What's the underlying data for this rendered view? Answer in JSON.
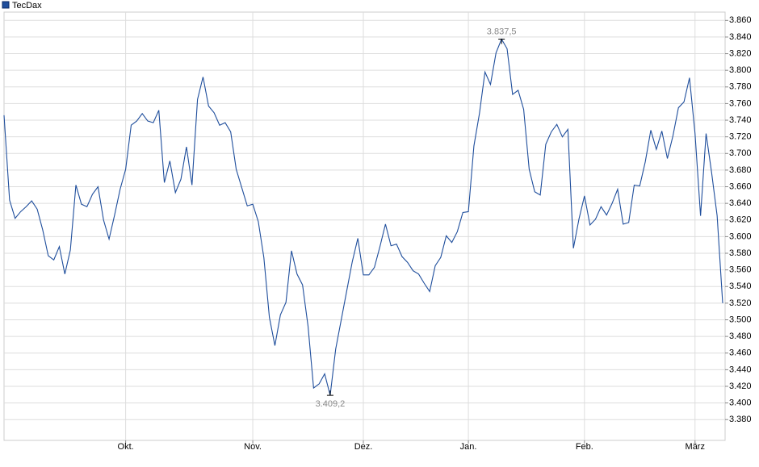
{
  "chart_data": {
    "type": "line",
    "legend": "top-left",
    "grid": true,
    "categories": [
      null,
      null,
      null,
      null,
      null,
      null,
      null,
      null,
      null,
      null,
      null,
      null,
      null,
      null,
      null,
      null,
      null,
      null,
      null,
      null,
      null,
      null,
      "Okt.",
      null,
      null,
      null,
      null,
      null,
      null,
      null,
      null,
      null,
      null,
      null,
      null,
      null,
      null,
      null,
      null,
      null,
      null,
      null,
      null,
      null,
      null,
      "Nov.",
      null,
      null,
      null,
      null,
      null,
      null,
      null,
      null,
      null,
      null,
      null,
      null,
      null,
      null,
      null,
      null,
      null,
      null,
      null,
      "Dez.",
      null,
      null,
      null,
      null,
      null,
      null,
      null,
      null,
      null,
      null,
      null,
      null,
      null,
      null,
      null,
      null,
      null,
      null,
      "Jan.",
      null,
      null,
      null,
      null,
      null,
      null,
      null,
      null,
      null,
      null,
      null,
      null,
      null,
      null,
      null,
      null,
      null,
      null,
      null,
      null,
      "Feb.",
      null,
      null,
      null,
      null,
      null,
      null,
      null,
      null,
      null,
      null,
      null,
      null,
      null,
      null,
      null,
      null,
      null,
      null,
      null,
      "März",
      null,
      null,
      null,
      null,
      null
    ],
    "series": [
      {
        "name": "TecDax",
        "color": "#1f4e9c",
        "values": [
          3746,
          3644,
          3622,
          3630,
          3636,
          3643,
          3633,
          3608,
          3577,
          3572,
          3588,
          3555,
          3584,
          3662,
          3639,
          3636,
          3651,
          3660,
          3620,
          3597,
          3626,
          3657,
          3681,
          3734,
          3739,
          3748,
          3739,
          3737,
          3752,
          3665,
          3691,
          3653,
          3669,
          3708,
          3662,
          3765,
          3792,
          3757,
          3749,
          3734,
          3737,
          3726,
          3681,
          3659,
          3637,
          3639,
          3618,
          3575,
          3503,
          3469,
          3506,
          3521,
          3583,
          3555,
          3542,
          3492,
          3418,
          3423,
          3435,
          3409.2,
          3465,
          3500,
          3535,
          3570,
          3598,
          3554,
          3554,
          3563,
          3588,
          3615,
          3589,
          3591,
          3576,
          3569,
          3559,
          3555,
          3544,
          3534,
          3565,
          3575,
          3601,
          3593,
          3606,
          3629,
          3630,
          3709,
          3748,
          3798,
          3783,
          3821,
          3837.5,
          3826,
          3771,
          3776,
          3753,
          3681,
          3654,
          3650,
          3711,
          3726,
          3735,
          3720,
          3729,
          3586,
          3621,
          3649,
          3614,
          3621,
          3636,
          3626,
          3640,
          3657,
          3615,
          3617,
          3662,
          3661,
          3690,
          3728,
          3705,
          3727,
          3694,
          3721,
          3755,
          3762,
          3791,
          3724,
          3625,
          3724,
          3677,
          3625,
          3520
        ],
        "value_labels": [
          null,
          null,
          null,
          null,
          null,
          null,
          null,
          null,
          null,
          null,
          null,
          null,
          null,
          null,
          null,
          null,
          null,
          null,
          null,
          null,
          null,
          null,
          null,
          null,
          null,
          null,
          null,
          null,
          null,
          null,
          null,
          null,
          null,
          null,
          null,
          null,
          null,
          null,
          null,
          null,
          null,
          null,
          null,
          null,
          null,
          null,
          null,
          null,
          null,
          null,
          null,
          null,
          null,
          null,
          null,
          null,
          null,
          null,
          null,
          "3.409,2",
          null,
          null,
          null,
          null,
          null,
          null,
          null,
          null,
          null,
          null,
          null,
          null,
          null,
          null,
          null,
          null,
          null,
          null,
          null,
          null,
          null,
          null,
          null,
          null,
          null,
          null,
          null,
          null,
          null,
          null,
          "3.837,5",
          null,
          null,
          null,
          null,
          null,
          null,
          null,
          null,
          null,
          null,
          null,
          null,
          null,
          null,
          null,
          null,
          null,
          null,
          null,
          null,
          null,
          null,
          null,
          null,
          null,
          null,
          null,
          null,
          null,
          null,
          null,
          null,
          null,
          null,
          null,
          null,
          null,
          null,
          null,
          null
        ]
      }
    ],
    "ylim": [
      3355,
      3870
    ],
    "yticks": [
      {
        "value": 3380,
        "label": "3.380"
      },
      {
        "value": 3400,
        "label": "3.400"
      },
      {
        "value": 3420,
        "label": "3.420"
      },
      {
        "value": 3440,
        "label": "3.440"
      },
      {
        "value": 3460,
        "label": "3.460"
      },
      {
        "value": 3480,
        "label": "3.480"
      },
      {
        "value": 3500,
        "label": "3.500"
      },
      {
        "value": 3520,
        "label": "3.520"
      },
      {
        "value": 3540,
        "label": "3.540"
      },
      {
        "value": 3560,
        "label": "3.560"
      },
      {
        "value": 3580,
        "label": "3.580"
      },
      {
        "value": 3600,
        "label": "3.600"
      },
      {
        "value": 3620,
        "label": "3.620"
      },
      {
        "value": 3640,
        "label": "3.640"
      },
      {
        "value": 3660,
        "label": "3.660"
      },
      {
        "value": 3680,
        "label": "3.680"
      },
      {
        "value": 3700,
        "label": "3.700"
      },
      {
        "value": 3720,
        "label": "3.720"
      },
      {
        "value": 3740,
        "label": "3.740"
      },
      {
        "value": 3760,
        "label": "3.760"
      },
      {
        "value": 3780,
        "label": "3.780"
      },
      {
        "value": 3800,
        "label": "3.800"
      },
      {
        "value": 3820,
        "label": "3.820"
      },
      {
        "value": 3840,
        "label": "3.840"
      },
      {
        "value": 3860,
        "label": "3.860"
      }
    ]
  }
}
